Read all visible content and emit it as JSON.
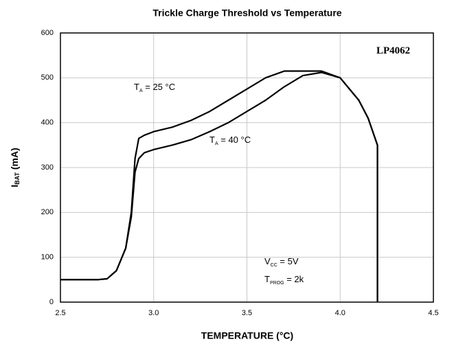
{
  "chart_data": {
    "type": "line",
    "title": "Trickle Charge Threshold vs Temperature",
    "x_label": "TEMPERATURE (°C)",
    "y_label": {
      "main": "I",
      "sub": "BAT",
      "rest": " (mA)"
    },
    "x": [
      2.5,
      2.6,
      2.7,
      2.75,
      2.8,
      2.85,
      2.88,
      2.9,
      2.92,
      2.95,
      3.0,
      3.1,
      3.2,
      3.3,
      3.4,
      3.5,
      3.6,
      3.7,
      3.8,
      3.9,
      4.0,
      4.1,
      4.15,
      4.2,
      4.2
    ],
    "series": [
      {
        "color": "#000000",
        "values": [
          50,
          50,
          50,
          52,
          70,
          120,
          200,
          320,
          365,
          372,
          380,
          390,
          405,
          425,
          450,
          475,
          500,
          515,
          515,
          515,
          500,
          450,
          410,
          350,
          0
        ]
      },
      {
        "color": "#000000",
        "values": [
          50,
          50,
          50,
          52,
          70,
          120,
          190,
          290,
          320,
          333,
          340,
          350,
          362,
          380,
          400,
          425,
          450,
          480,
          505,
          512,
          500,
          450,
          410,
          350,
          0
        ]
      }
    ],
    "xlim": [
      2.5,
      4.5
    ],
    "xticks": [
      2.5,
      {
        "value": 3,
        "label": "3.0"
      },
      3.5,
      {
        "value": 4,
        "label": "4.0"
      },
      4.5
    ],
    "ylim": [
      0,
      600
    ],
    "yticks": [
      0,
      100,
      200,
      300,
      400,
      500,
      600
    ],
    "grid": true,
    "annotations": [
      {
        "main": "LP4062"
      },
      {
        "main": "T",
        "sub": "A",
        "rest": " = 25 °C"
      },
      {
        "main": "T",
        "sub": "A",
        "rest": " = 40 °C"
      },
      {
        "main": "V",
        "sub": "CC",
        "rest": " = 5V"
      },
      {
        "main": "T",
        "sub": "PROG",
        "rest": " = 2k"
      }
    ]
  }
}
